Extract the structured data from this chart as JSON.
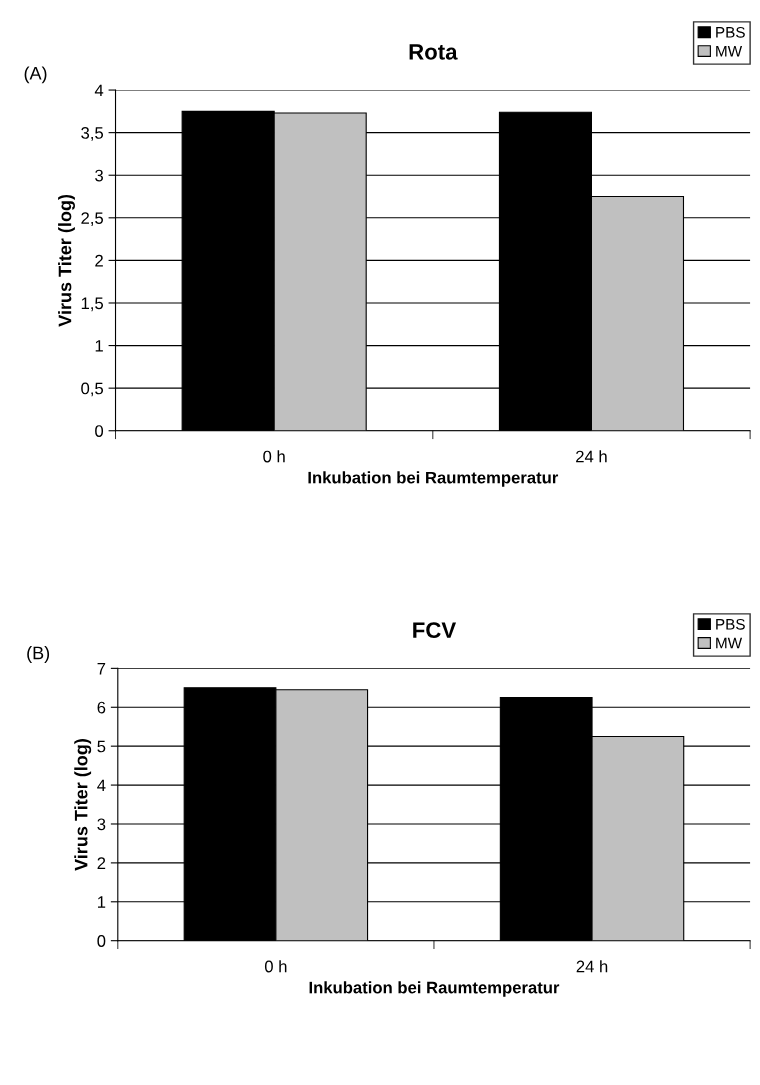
{
  "chart_data": [
    {
      "type": "bar",
      "title": "Rota",
      "xlabel": "Inkubation bei Raumtemperatur",
      "ylabel": "Virus Titer (log)",
      "annotations": [
        "(A)"
      ],
      "categories": [
        "0 h",
        "24 h"
      ],
      "series": [
        {
          "name": "PBS",
          "color": "#000000",
          "values": [
            3.75,
            3.74
          ]
        },
        {
          "name": "MW",
          "color": "#c0c0c0",
          "values": [
            3.73,
            2.75
          ]
        }
      ],
      "ylim": [
        0,
        4
      ],
      "yticks": [
        0,
        {
          "value": 0.5,
          "label": "0,5"
        },
        1,
        {
          "value": 1.5,
          "label": "1,5"
        },
        2,
        {
          "value": 2.5,
          "label": "2,5"
        },
        3,
        {
          "value": 3.5,
          "label": "3,5"
        },
        4
      ],
      "grid": "y",
      "legend": "top right"
    },
    {
      "type": "bar",
      "title": "FCV",
      "xlabel": "Inkubation bei Raumtemperatur",
      "ylabel": "Virus Titer (log)",
      "annotations": [
        "(B)"
      ],
      "categories": [
        "0 h",
        "24 h"
      ],
      "series": [
        {
          "name": "PBS",
          "color": "#000000",
          "values": [
            6.5,
            6.25
          ]
        },
        {
          "name": "MW",
          "color": "#c0c0c0",
          "values": [
            6.45,
            5.25
          ]
        }
      ],
      "ylim": [
        0,
        7
      ],
      "yticks": [
        0,
        1,
        2,
        3,
        4,
        5,
        6,
        7
      ],
      "grid": "y",
      "legend": "top right"
    }
  ]
}
